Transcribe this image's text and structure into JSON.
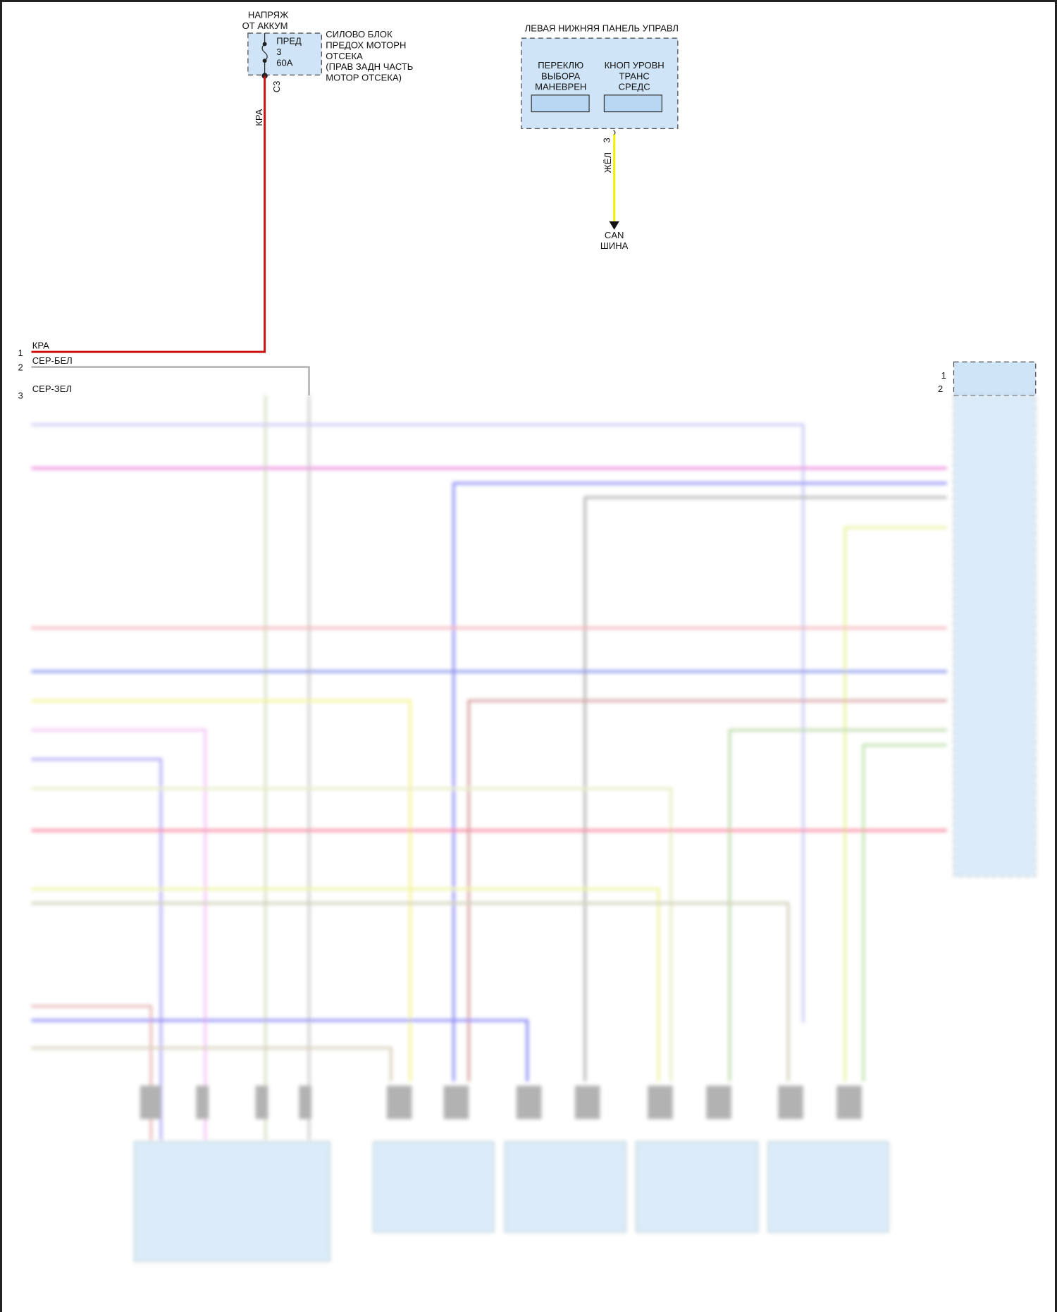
{
  "battery_source": {
    "line1": "НАПРЯЖ",
    "line2": "ОТ АККУМ"
  },
  "fuse": {
    "name": "ПРЕД",
    "number": "3",
    "rating": "60A",
    "connector": "С3"
  },
  "power_block": {
    "lines": [
      "СИЛОВО БЛОК",
      "ПРЕДОХ МОТОРН",
      "ОТСЕКА",
      "(ПРАВ ЗАДН ЧАСТЬ",
      "МОТОР ОТСЕКА)"
    ]
  },
  "left_panel": {
    "title": "ЛЕВАЯ НИЖНЯЯ ПАНЕЛЬ УПРАВЛ",
    "switch1": [
      "ПЕРЕКЛЮ",
      "ВЫБОРА",
      "МАНЕВРЕН"
    ],
    "switch2": [
      "КНОП УРОВН",
      "ТРАНС",
      "СРЕДС"
    ],
    "pin": "3",
    "wire_color_label": "ЖЁЛ",
    "destination": [
      "CAN",
      "ШИНА"
    ]
  },
  "wires": [
    {
      "pin": "1",
      "label": "КРА",
      "color": "#cc1111"
    },
    {
      "pin": "2",
      "label": "СЕР-БЕЛ",
      "color": "#aaaaaa"
    },
    {
      "pin": "3",
      "label": "СЕР-ЗЕЛ",
      "color": "#b5c4a0"
    }
  ],
  "right_connector_pins": [
    "1",
    "2"
  ],
  "colors": {
    "module_fill": "#cfe5f7",
    "can_wire": "#f0f000",
    "power_wire": "#cc1111"
  }
}
